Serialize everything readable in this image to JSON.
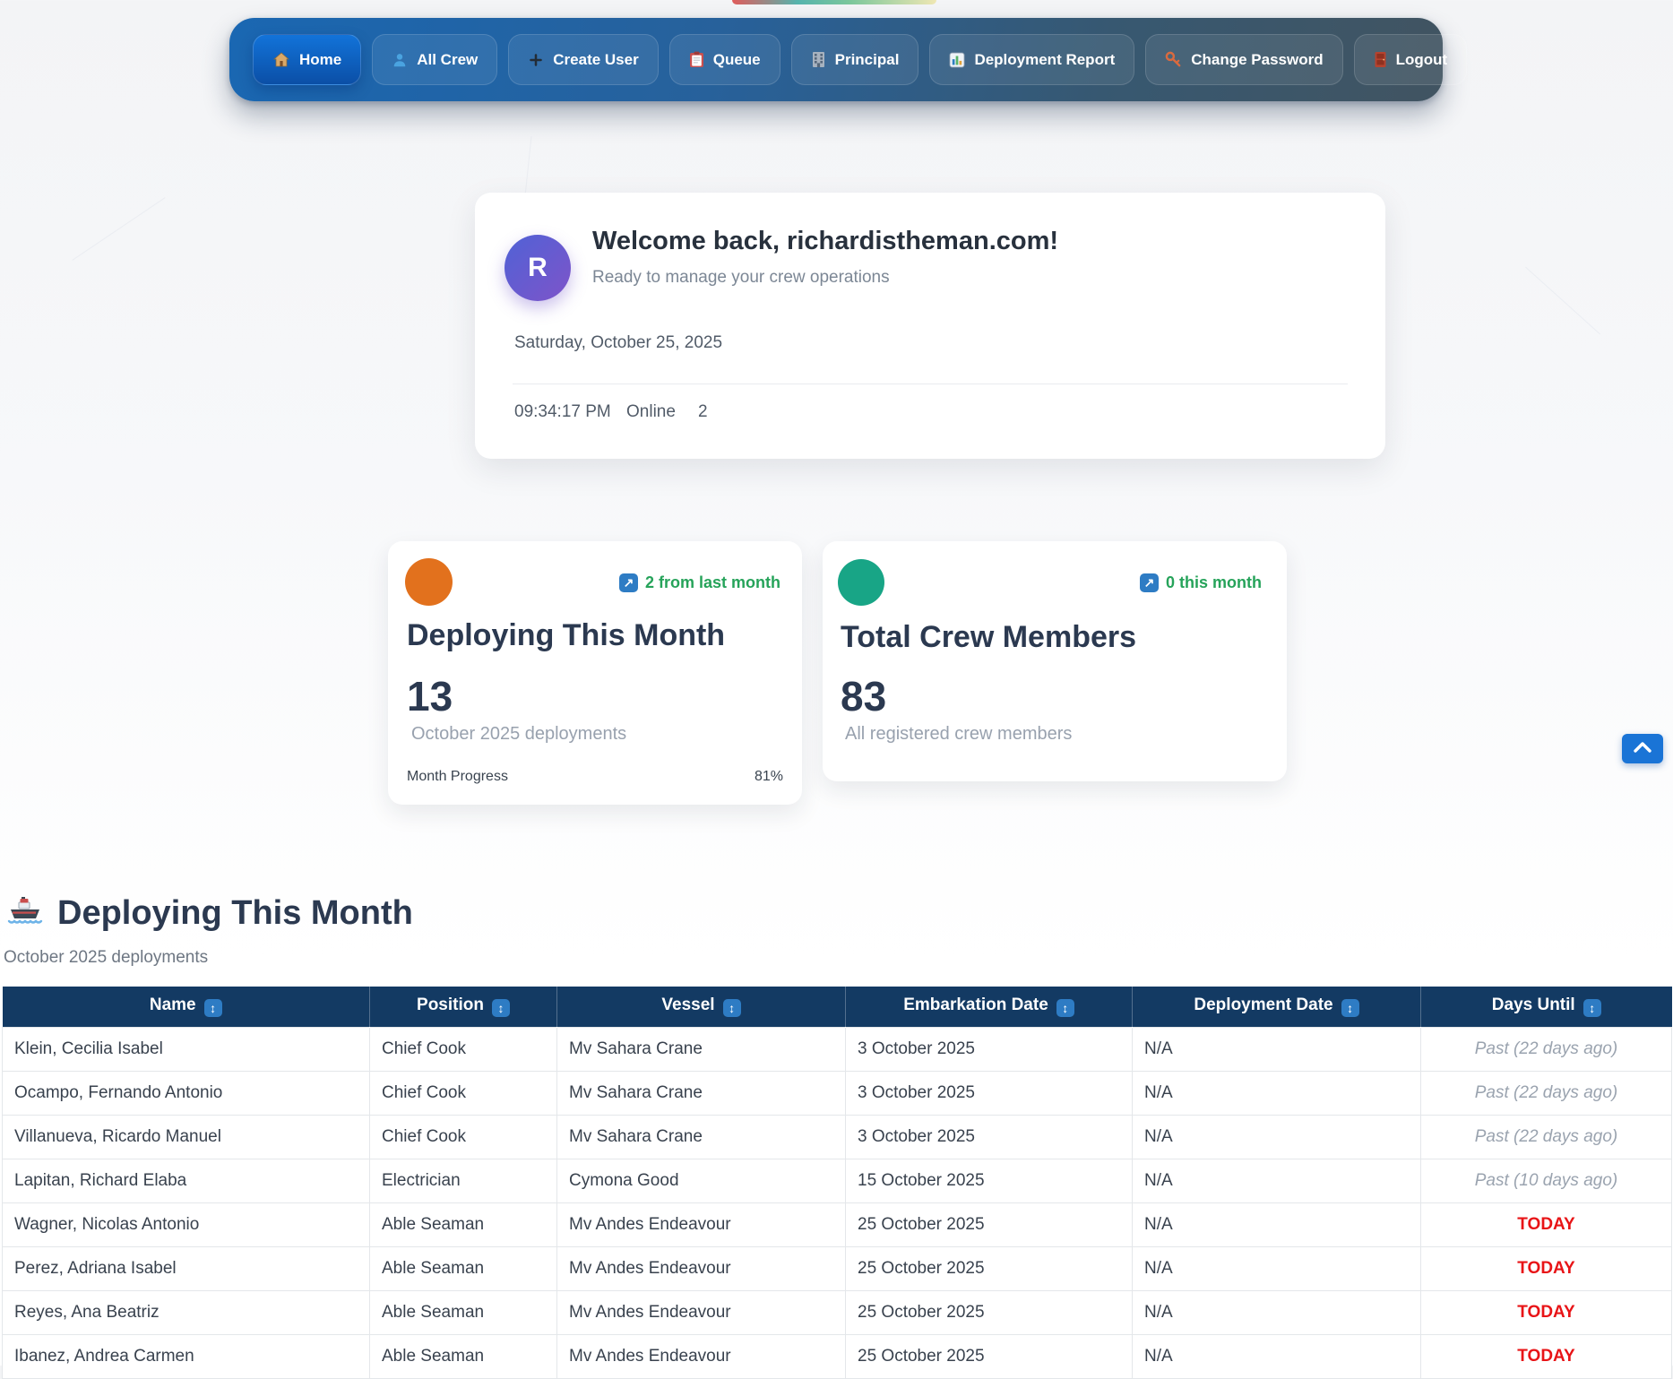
{
  "nav": {
    "items": [
      {
        "label": "Home",
        "icon": "home-icon",
        "active": true
      },
      {
        "label": "All Crew",
        "icon": "person-icon",
        "active": false
      },
      {
        "label": "Create User",
        "icon": "plus-icon",
        "active": false
      },
      {
        "label": "Queue",
        "icon": "clipboard-icon",
        "active": false
      },
      {
        "label": "Principal",
        "icon": "building-icon",
        "active": false
      },
      {
        "label": "Deployment Report",
        "icon": "bar-chart-icon",
        "active": false
      },
      {
        "label": "Change Password",
        "icon": "key-icon",
        "active": false
      },
      {
        "label": "Logout",
        "icon": "door-icon",
        "active": false
      }
    ]
  },
  "welcome": {
    "avatar_letter": "R",
    "title": "Welcome back, richardistheman.com!",
    "subtitle": "Ready to manage your crew operations",
    "date": "Saturday, October 25, 2025",
    "time": "09:34:17 PM",
    "status": "Online",
    "count": "2"
  },
  "stats": [
    {
      "title": "Deploying This Month",
      "value": "13",
      "subtitle": "October 2025 deployments",
      "badge": "2 from last month",
      "badge_arrow": "↗",
      "icon_color": "#e2711d",
      "progress_label": "Month Progress",
      "progress_value": "81%"
    },
    {
      "title": "Total Crew Members",
      "value": "83",
      "subtitle": "All registered crew members",
      "badge": "0 this month",
      "badge_arrow": "↗",
      "icon_color": "#18a586"
    }
  ],
  "deployments": {
    "heading": "Deploying This Month",
    "subheading": "October 2025 deployments",
    "sort_glyph": "↕",
    "columns": [
      "Name",
      "Position",
      "Vessel",
      "Embarkation Date",
      "Deployment Date",
      "Days Until"
    ],
    "rows": [
      {
        "name": "Klein, Cecilia Isabel",
        "position": "Chief Cook",
        "vessel": "Mv Sahara Crane",
        "embarkation": "3 October 2025",
        "deployment": "N/A",
        "days_until": "Past (22 days ago)",
        "status": "past"
      },
      {
        "name": "Ocampo, Fernando Antonio",
        "position": "Chief Cook",
        "vessel": "Mv Sahara Crane",
        "embarkation": "3 October 2025",
        "deployment": "N/A",
        "days_until": "Past (22 days ago)",
        "status": "past"
      },
      {
        "name": "Villanueva, Ricardo Manuel",
        "position": "Chief Cook",
        "vessel": "Mv Sahara Crane",
        "embarkation": "3 October 2025",
        "deployment": "N/A",
        "days_until": "Past (22 days ago)",
        "status": "past"
      },
      {
        "name": "Lapitan, Richard Elaba",
        "position": "Electrician",
        "vessel": "Cymona Good",
        "embarkation": "15 October 2025",
        "deployment": "N/A",
        "days_until": "Past (10 days ago)",
        "status": "past"
      },
      {
        "name": "Wagner, Nicolas Antonio",
        "position": "Able Seaman",
        "vessel": "Mv Andes Endeavour",
        "embarkation": "25 October 2025",
        "deployment": "N/A",
        "days_until": "TODAY",
        "status": "today"
      },
      {
        "name": "Perez, Adriana Isabel",
        "position": "Able Seaman",
        "vessel": "Mv Andes Endeavour",
        "embarkation": "25 October 2025",
        "deployment": "N/A",
        "days_until": "TODAY",
        "status": "today"
      },
      {
        "name": "Reyes, Ana Beatriz",
        "position": "Able Seaman",
        "vessel": "Mv Andes Endeavour",
        "embarkation": "25 October 2025",
        "deployment": "N/A",
        "days_until": "TODAY",
        "status": "today"
      },
      {
        "name": "Ibanez, Andrea Carmen",
        "position": "Able Seaman",
        "vessel": "Mv Andes Endeavour",
        "embarkation": "25 October 2025",
        "deployment": "N/A",
        "days_until": "TODAY",
        "status": "today"
      }
    ]
  },
  "colors": {
    "nav_left": "#1a67b2",
    "nav_right": "#415461",
    "active_button": "#0e5cba",
    "table_header": "#133a63",
    "sort_icon": "#2e7cc4",
    "badge_green": "#26a35a",
    "today_red": "#e81417",
    "stat_orange": "#e2711d",
    "stat_teal": "#18a586",
    "avatar_gradient_start": "#5062d6",
    "avatar_gradient_end": "#7e54c9",
    "scroll_button": "#1a74d6"
  }
}
